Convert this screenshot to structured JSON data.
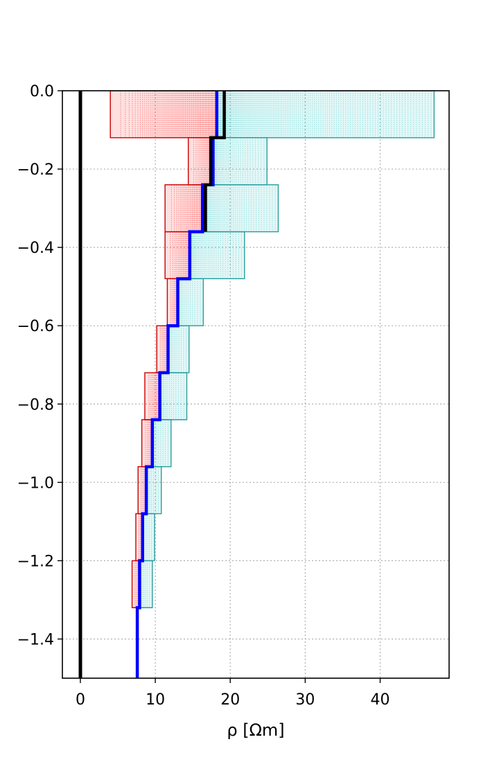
{
  "chart_data": {
    "type": "line",
    "title": "",
    "xlabel": "ρ [Ωm]",
    "ylabel": "",
    "xlim": [
      -2.4,
      49.2
    ],
    "ylim": [
      -1.5,
      0.0
    ],
    "x_ticks": [
      0,
      10,
      20,
      30,
      40
    ],
    "x_tick_labels": [
      "0",
      "10",
      "20",
      "30",
      "40"
    ],
    "y_ticks": [
      0.0,
      -0.2,
      -0.4,
      -0.6,
      -0.8,
      -1.0,
      -1.2,
      -1.4
    ],
    "y_tick_labels": [
      "0.0",
      "−0.2",
      "−0.4",
      "−0.6",
      "−0.8",
      "−1.0",
      "−1.2",
      "−1.4"
    ],
    "grid": true,
    "legend": false,
    "layer_boundaries": [
      0.0,
      -0.12,
      -0.24,
      -0.36,
      -0.48,
      -0.6,
      -0.72,
      -0.84,
      -0.96,
      -1.08,
      -1.2,
      -1.32
    ],
    "lower_bound_red": [
      4.0,
      14.4,
      11.3,
      11.3,
      11.6,
      10.2,
      8.6,
      8.2,
      7.7,
      7.4,
      6.9
    ],
    "upper_bound_cyan": [
      47.2,
      24.9,
      26.4,
      21.9,
      16.4,
      14.5,
      14.2,
      12.1,
      10.8,
      9.9,
      9.6
    ],
    "series": [
      {
        "color": "#0000ff",
        "depth": [
          0.0,
          -0.12,
          -0.12,
          -0.24,
          -0.24,
          -0.36,
          -0.36,
          -0.48,
          -0.48,
          -0.6,
          -0.6,
          -0.72,
          -0.72,
          -0.84,
          -0.84,
          -0.96,
          -0.96,
          -1.08,
          -1.08,
          -1.2,
          -1.2,
          -1.32,
          -1.32,
          -1.5
        ],
        "rho": [
          18.2,
          18.2,
          17.7,
          17.7,
          16.3,
          16.3,
          14.6,
          14.6,
          13.0,
          13.0,
          11.7,
          11.7,
          10.6,
          10.6,
          9.6,
          9.6,
          8.8,
          8.8,
          8.3,
          8.3,
          7.9,
          7.9,
          7.6,
          7.6
        ]
      },
      {
        "color": "#000000",
        "depth": [
          0.0,
          -0.12,
          -0.12,
          -0.24,
          -0.24,
          -0.36
        ],
        "rho": [
          19.2,
          19.2,
          17.4,
          17.4,
          16.7,
          16.7
        ]
      },
      {
        "color": "#000000",
        "depth": [
          0.0,
          -1.5
        ],
        "rho": [
          0,
          0
        ]
      }
    ],
    "colors": {
      "lower_fill": "#ff0000",
      "upper_fill": "#20c0c0",
      "lower_outline": "#cc0000",
      "upper_outline": "#2a9d9d",
      "grid": "#b0b0b0"
    }
  }
}
